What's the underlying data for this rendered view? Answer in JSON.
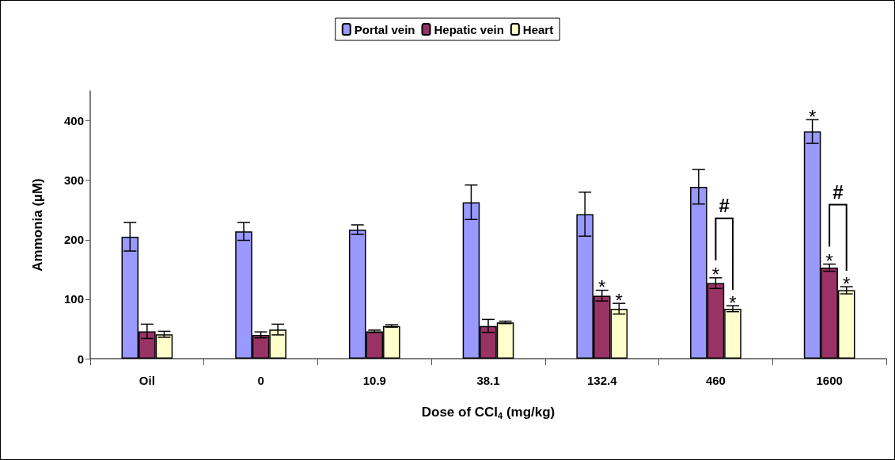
{
  "chart_data": {
    "type": "bar",
    "xlabel": "Dose of CCl$_{4}$ (mg/kg)",
    "ylabel": "Ammonia (µM)",
    "categories": [
      "Oil",
      "0",
      "10.9",
      "38.1",
      "132.4",
      "460",
      "1600"
    ],
    "series": [
      {
        "name": "Portal vein",
        "color": "#9999ff",
        "values": [
          205,
          214,
          217,
          263,
          243,
          289,
          382
        ],
        "errors": [
          24,
          15,
          8,
          29,
          37,
          29,
          20
        ],
        "value_labels": [
          null,
          null,
          null,
          null,
          null,
          null,
          "*"
        ]
      },
      {
        "name": "Hepatic vein",
        "color": "#993366",
        "values": [
          46,
          40,
          46,
          55,
          106,
          127,
          153
        ],
        "errors": [
          12,
          5,
          2,
          11,
          9,
          9,
          6
        ],
        "value_labels": [
          null,
          null,
          null,
          null,
          "*",
          "*",
          "*"
        ]
      },
      {
        "name": "Heart",
        "color": "#ffffcc",
        "values": [
          41,
          49,
          55,
          61,
          84,
          84,
          115
        ],
        "errors": [
          5,
          9,
          2,
          2,
          9,
          5,
          6
        ],
        "value_labels": [
          null,
          null,
          null,
          null,
          "*",
          "*",
          "*"
        ]
      }
    ],
    "ylim": [
      0,
      450
    ],
    "yticks": [
      0,
      100,
      200,
      300,
      400
    ],
    "grid": false,
    "legend": "top",
    "annotations": [
      "#",
      "#"
    ]
  }
}
